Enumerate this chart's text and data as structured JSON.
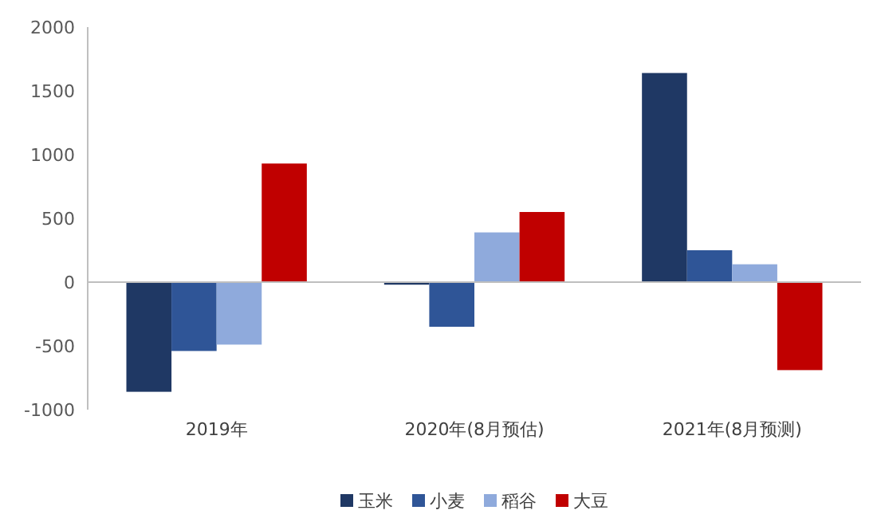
{
  "chart_data": {
    "type": "bar",
    "categories": [
      "2019年",
      "2020年(8月预估)",
      "2021年(8月预测)"
    ],
    "series": [
      {
        "name": "玉米",
        "color": "#1f3864",
        "values": [
          -860,
          -20,
          1640
        ]
      },
      {
        "name": "小麦",
        "color": "#2f5597",
        "values": [
          -540,
          -350,
          250
        ]
      },
      {
        "name": "稻谷",
        "color": "#8faadc",
        "values": [
          -490,
          390,
          140
        ]
      },
      {
        "name": "大豆",
        "color": "#c00000",
        "values": [
          930,
          550,
          -690
        ]
      }
    ],
    "ylim": [
      -1000,
      2000
    ],
    "yticks": [
      -1000,
      -500,
      0,
      500,
      1000,
      1500,
      2000
    ],
    "legend": "bottom"
  }
}
